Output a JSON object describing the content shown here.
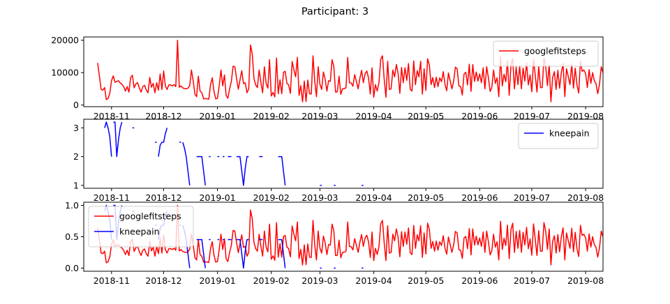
{
  "title": "Participant: 3",
  "colors": {
    "googlefitsteps": "#ff0000",
    "kneepain": "#0000ff"
  },
  "x_ticks": [
    "2018-11",
    "2018-12",
    "2019-01",
    "2019-02",
    "2019-03",
    "2019-04",
    "2019-05",
    "2019-06",
    "2019-07",
    "2019-08"
  ],
  "chart_data": [
    {
      "type": "line",
      "xlabel": "",
      "ylabel": "",
      "xlim": [
        "2018-10-16",
        "2019-08-11"
      ],
      "ylim": [
        -500,
        21000
      ],
      "y_ticks": [
        0,
        10000,
        20000
      ],
      "y_tick_labels": [
        "0",
        "10000",
        "20000"
      ],
      "grid": false,
      "legend": "upper right",
      "series": [
        {
          "name": "googlefitsteps",
          "color": "#ff0000",
          "start": "2018-10-24",
          "values": [
            13000,
            9000,
            4800,
            4600,
            5400,
            1700,
            2000,
            3600,
            7500,
            9000,
            7000,
            7300,
            7500,
            6800,
            6400,
            5700,
            4300,
            5700,
            4000,
            8500,
            9200,
            5300,
            6500,
            6900,
            5300,
            4000,
            5700,
            6100,
            4600,
            3800,
            8500,
            5500,
            6700,
            3800,
            6900,
            4600,
            9600,
            4800,
            10500,
            5900,
            4800,
            6200,
            6200,
            5900,
            6300,
            5700,
            20000,
            5500,
            5900,
            5300,
            5100,
            5000,
            5200,
            6000,
            10800,
            7500,
            3300,
            2600,
            8900,
            4300,
            3800,
            1900,
            2000,
            1900,
            1800,
            6200,
            8400,
            4200,
            1900,
            2100,
            5900,
            10800,
            5900,
            9300,
            3000,
            2100,
            5000,
            7300,
            12000,
            11800,
            8100,
            4900,
            7800,
            10600,
            6600,
            6900,
            3800,
            5000,
            18500,
            15800,
            8200,
            6200,
            5400,
            10800,
            7000,
            3800,
            11800,
            6700,
            5200,
            14000,
            2800,
            3900,
            2500,
            14500,
            3500,
            7800,
            3500,
            10100,
            10400,
            6700,
            6200,
            3600,
            13400,
            10800,
            8700,
            14700,
            3000,
            6000,
            1000,
            7400,
            1100,
            7700,
            3500,
            3400,
            15200,
            7500,
            2600,
            11800,
            6400,
            4800,
            10200,
            8000,
            4300,
            7500,
            7300,
            14000,
            11900,
            4000,
            4100,
            8900,
            3300,
            5000,
            5100,
            5300,
            14700,
            6900,
            6800,
            5800,
            9400,
            7200,
            5000,
            8200,
            10700,
            6900,
            9600,
            10500,
            8300,
            3400,
            11500,
            2400,
            6300,
            4300,
            6900,
            14100,
            15200,
            8000,
            2400,
            13500,
            4800,
            5000,
            10800,
            8700,
            12500,
            9800,
            3600,
            11600,
            6900,
            11500,
            7600,
            12800,
            4900,
            4300,
            13600,
            6300,
            10600,
            8700,
            13500,
            3400,
            11200,
            4500,
            14300,
            12300,
            6300,
            8500,
            5400,
            8600,
            5700,
            8400,
            7200,
            10300,
            6400,
            4400,
            9900,
            7500,
            5000,
            7300,
            11700,
            11200,
            5900,
            5700,
            3100,
            9600,
            10100,
            6200,
            12600,
            4200,
            12500,
            7300,
            10200,
            7400,
            9600,
            6900,
            11500,
            5000,
            11800,
            8400,
            4200,
            5500,
            10800,
            6700,
            8400,
            2600,
            14900,
            5900,
            9500,
            7200,
            13700,
            3000,
            12200,
            14300,
            5000,
            11700,
            6300,
            12000,
            5000,
            11400,
            7400,
            13000,
            6200,
            9300,
            4100,
            14100,
            9000,
            4000,
            11900,
            5400,
            5400,
            14500,
            11800,
            6000,
            12500,
            1000,
            8500,
            10300,
            4800,
            10700,
            5200,
            10000,
            12800,
            2600,
            11200,
            8800,
            6300,
            12700,
            5200,
            11400,
            6200,
            3700,
            13600,
            10400,
            10800,
            9700,
            5400,
            10900,
            6700,
            10000,
            7500,
            6600,
            3500,
            6500,
            11800,
            10000,
            13200,
            4900,
            11600,
            7700,
            12800,
            6400,
            7700,
            4700,
            12900,
            10000,
            4000,
            10800,
            5300,
            11000,
            4700,
            12400,
            4100,
            11400,
            7200,
            11300,
            7900,
            4900,
            3600,
            10500,
            5100,
            10600,
            4900,
            13700,
            8100,
            7400,
            5500,
            4800,
            5500,
            7300,
            6900,
            6800,
            6900,
            6000,
            400,
            5500,
            4800,
            12000,
            18500,
            14500,
            7000,
            12500,
            11700,
            6400,
            11300,
            6200,
            12000,
            13000,
            12000,
            12200,
            10300,
            2100,
            11200,
            600,
            12400,
            12000,
            12700,
            9800,
            11400,
            5700,
            12100,
            2000,
            3100,
            3200,
            4200,
            4900,
            8700,
            12500
          ]
        }
      ]
    },
    {
      "type": "line",
      "xlabel": "",
      "ylabel": "",
      "xlim": [
        "2018-10-16",
        "2019-08-11"
      ],
      "ylim": [
        0.9,
        3.3
      ],
      "y_ticks": [
        1,
        2,
        3
      ],
      "y_tick_labels": [
        "1",
        "2",
        "3"
      ],
      "grid": false,
      "legend": "upper right",
      "series": [
        {
          "name": "kneepain",
          "color": "#0000ff",
          "points": [
            [
              "2018-10-28",
              3
            ],
            [
              "2018-10-29",
              3.2
            ],
            [
              "2018-10-30",
              3
            ],
            [
              "2018-10-31",
              2.7
            ],
            [
              "2018-11-01",
              2
            ],
            null,
            [
              "2018-11-02",
              3.2
            ],
            [
              "2018-11-03",
              3.2
            ],
            [
              "2018-11-04",
              2
            ],
            [
              "2018-11-05",
              2.6
            ],
            [
              "2018-11-06",
              3
            ],
            [
              "2018-11-07",
              3.2
            ],
            null,
            [
              "2018-11-13",
              3
            ],
            [
              "2018-11-14",
              3
            ],
            null,
            [
              "2018-11-26",
              2.5
            ],
            [
              "2018-11-27",
              2.5
            ],
            null,
            [
              "2018-11-28",
              2
            ],
            [
              "2018-11-29",
              2.4
            ],
            [
              "2018-11-30",
              2.5
            ],
            [
              "2018-12-01",
              2.5
            ],
            [
              "2018-12-02",
              2.8
            ],
            [
              "2018-12-03",
              3
            ],
            null,
            [
              "2018-12-10",
              2.5
            ],
            [
              "2018-12-11",
              2.5
            ],
            null,
            [
              "2018-12-12",
              2.5
            ],
            [
              "2018-12-13",
              2.3
            ],
            [
              "2018-12-14",
              2
            ],
            [
              "2018-12-15",
              1.5
            ],
            [
              "2018-12-16",
              1
            ],
            null,
            [
              "2018-12-20",
              2
            ],
            [
              "2018-12-21",
              2
            ],
            [
              "2018-12-22",
              2
            ],
            [
              "2018-12-23",
              2
            ],
            [
              "2018-12-24",
              1.5
            ],
            [
              "2018-12-25",
              1
            ],
            null,
            [
              "2018-12-27",
              2
            ],
            [
              "2018-12-28",
              2
            ],
            null,
            [
              "2019-01-01",
              2
            ],
            [
              "2019-01-02",
              2
            ],
            null,
            [
              "2019-01-04",
              2
            ],
            [
              "2019-01-05",
              2
            ],
            null,
            [
              "2019-01-07",
              2
            ],
            [
              "2019-01-08",
              2
            ],
            [
              "2019-01-09",
              2
            ],
            null,
            [
              "2019-01-12",
              2
            ],
            [
              "2019-01-13",
              2
            ],
            [
              "2019-01-14",
              2
            ],
            [
              "2019-01-15",
              1.5
            ],
            [
              "2019-01-16",
              1
            ],
            [
              "2019-01-17",
              1.6
            ],
            [
              "2019-01-18",
              2
            ],
            [
              "2019-01-19",
              2
            ],
            null,
            [
              "2019-01-25",
              2
            ],
            [
              "2019-01-26",
              2
            ],
            [
              "2019-01-27",
              2
            ],
            null,
            [
              "2019-02-05",
              2
            ],
            [
              "2019-02-06",
              2
            ],
            [
              "2019-02-07",
              2
            ],
            [
              "2019-02-08",
              1.5
            ],
            [
              "2019-02-09",
              1
            ],
            null,
            [
              "2019-03-01",
              1
            ],
            [
              "2019-03-02",
              1
            ],
            null,
            [
              "2019-03-09",
              1
            ],
            [
              "2019-03-10",
              1
            ],
            null,
            [
              "2019-03-25",
              1
            ],
            [
              "2019-03-26",
              1
            ]
          ]
        }
      ]
    },
    {
      "type": "line",
      "xlabel": "",
      "ylabel": "",
      "xlim": [
        "2018-10-16",
        "2019-08-11"
      ],
      "ylim": [
        -0.05,
        1.05
      ],
      "y_ticks": [
        0.0,
        0.5,
        1.0
      ],
      "y_tick_labels": [
        "0.0",
        "0.5",
        "1.0"
      ],
      "grid": false,
      "legend": "upper left",
      "series": [
        {
          "name": "googlefitsteps",
          "color": "#ff0000",
          "normalized_from": "googlefitsteps"
        },
        {
          "name": "kneepain",
          "color": "#0000ff",
          "normalized_from": "kneepain"
        }
      ]
    }
  ]
}
